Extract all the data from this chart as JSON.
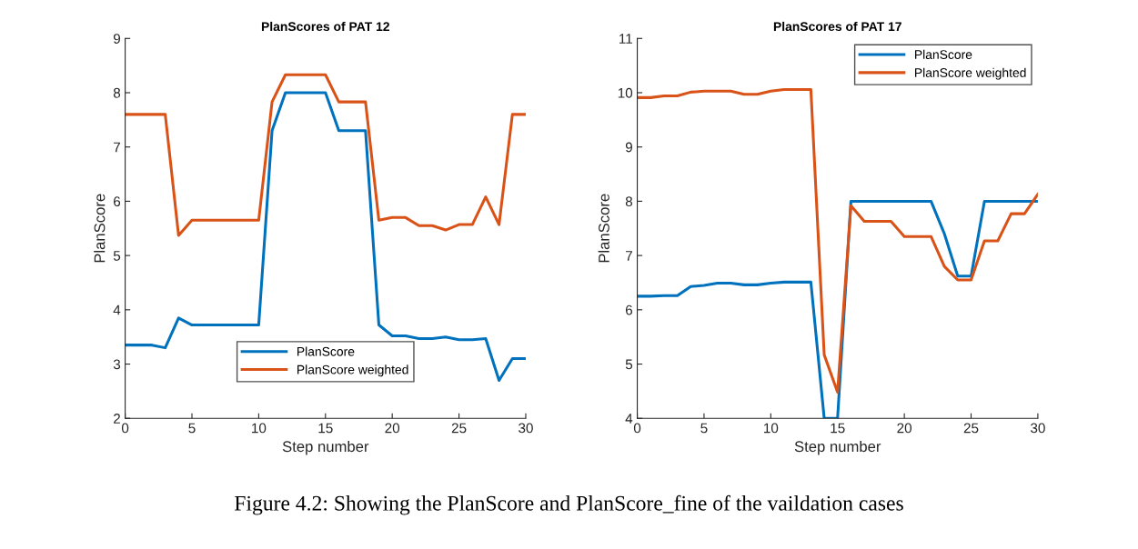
{
  "chart_data": [
    {
      "type": "line",
      "title": "PlanScores of PAT 12",
      "xlabel": "Step number",
      "ylabel": "PlanScore",
      "xlim": [
        0,
        30
      ],
      "xticks": [
        0,
        5,
        10,
        15,
        20,
        25,
        30
      ],
      "ylim": [
        2,
        9
      ],
      "yticks": [
        2,
        3,
        4,
        5,
        6,
        7,
        8,
        9
      ],
      "grid": false,
      "legend": "bottom",
      "marker": "none",
      "line_style": "solid",
      "x": [
        0,
        1,
        2,
        3,
        4,
        5,
        6,
        7,
        8,
        9,
        10,
        11,
        12,
        13,
        14,
        15,
        16,
        17,
        18,
        19,
        20,
        21,
        22,
        23,
        24,
        25,
        26,
        27,
        28,
        29,
        30
      ],
      "series": [
        {
          "name": "PlanScore",
          "color": "#0072bd",
          "values": [
            3.35,
            3.35,
            3.35,
            3.3,
            3.85,
            3.72,
            3.72,
            3.72,
            3.72,
            3.72,
            3.72,
            7.3,
            8,
            8,
            8,
            8,
            7.3,
            7.3,
            7.3,
            3.72,
            3.52,
            3.52,
            3.47,
            3.47,
            3.5,
            3.45,
            3.45,
            3.47,
            2.7,
            3.1,
            3.1
          ]
        },
        {
          "name": "PlanScore weighted",
          "color": "#d95319",
          "values": [
            7.6,
            7.6,
            7.6,
            7.6,
            5.37,
            5.65,
            5.65,
            5.65,
            5.65,
            5.65,
            5.65,
            7.83,
            8.33,
            8.33,
            8.33,
            8.33,
            7.83,
            7.83,
            7.83,
            5.65,
            5.7,
            5.7,
            5.55,
            5.55,
            5.47,
            5.57,
            5.57,
            6.08,
            5.57,
            7.6,
            7.6
          ]
        }
      ],
      "annotations": [
        "Figure 4.2: Showing the PlanScore and PlanScore_fine of the vaildation cases"
      ]
    },
    {
      "type": "line",
      "title": "PlanScores of PAT 17",
      "xlabel": "Step number",
      "ylabel": "PlanScore",
      "xlim": [
        0,
        30
      ],
      "xticks": [
        0,
        5,
        10,
        15,
        20,
        25,
        30
      ],
      "ylim": [
        4,
        11
      ],
      "yticks": [
        4,
        5,
        6,
        7,
        8,
        9,
        10,
        11
      ],
      "grid": false,
      "legend": "top right",
      "marker": "none",
      "line_style": "solid",
      "x": [
        0,
        1,
        2,
        3,
        4,
        5,
        6,
        7,
        8,
        9,
        10,
        11,
        12,
        13,
        14,
        15,
        16,
        17,
        18,
        19,
        20,
        21,
        22,
        23,
        24,
        25,
        26,
        27,
        28,
        29,
        30
      ],
      "series": [
        {
          "name": "PlanScore",
          "color": "#0072bd",
          "values": [
            6.25,
            6.25,
            6.26,
            6.26,
            6.43,
            6.45,
            6.49,
            6.49,
            6.46,
            6.46,
            6.49,
            6.51,
            6.51,
            6.51,
            4,
            4,
            8,
            8,
            8,
            8,
            8,
            8,
            8,
            7.4,
            6.62,
            6.62,
            8,
            8,
            8,
            8,
            8
          ]
        },
        {
          "name": "PlanScore weighted",
          "color": "#d95319",
          "values": [
            9.91,
            9.91,
            9.94,
            9.94,
            10.01,
            10.03,
            10.03,
            10.03,
            9.97,
            9.97,
            10.03,
            10.06,
            10.06,
            10.06,
            5.17,
            4.48,
            7.92,
            7.63,
            7.63,
            7.63,
            7.35,
            7.35,
            7.35,
            6.8,
            6.55,
            6.55,
            7.27,
            7.27,
            7.77,
            7.77,
            8.13
          ]
        }
      ]
    }
  ]
}
